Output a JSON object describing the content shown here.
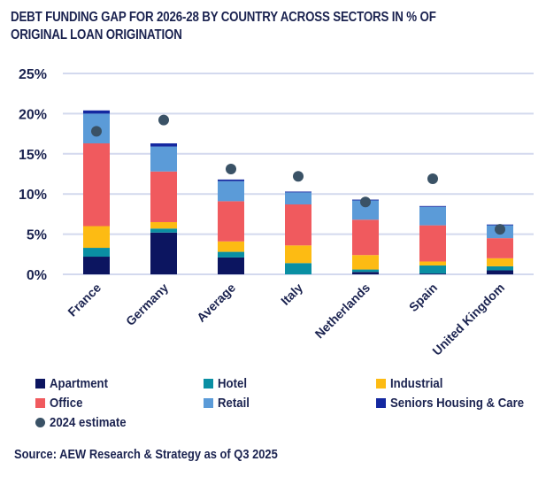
{
  "chart_data": {
    "type": "bar",
    "stacked": true,
    "title": "DEBT FUNDING GAP FOR 2026-28 BY COUNTRY ACROSS SECTORS IN % OF ORIGINAL LOAN ORIGINATION",
    "title_lines": [
      "DEBT FUNDING GAP FOR 2026-28 BY COUNTRY ACROSS SECTORS IN % OF",
      "ORIGINAL LOAN ORIGINATION"
    ],
    "xlabel": "",
    "ylabel": "",
    "ylim": [
      0,
      25
    ],
    "yticks": [
      0,
      5,
      10,
      15,
      20,
      25
    ],
    "ytick_labels": [
      "0%",
      "5%",
      "10%",
      "15%",
      "20%",
      "25%"
    ],
    "grid": true,
    "categories": [
      "France",
      "Germany",
      "Average",
      "Italy",
      "Netherlands",
      "Spain",
      "United Kingdom"
    ],
    "series": [
      {
        "name": "Apartment",
        "color": "#0c1560",
        "values": [
          2.2,
          5.2,
          2.1,
          0.0,
          0.3,
          0.1,
          0.5
        ]
      },
      {
        "name": "Hotel",
        "color": "#0a8fa3",
        "values": [
          1.1,
          0.5,
          0.7,
          1.4,
          0.3,
          1.0,
          0.5
        ]
      },
      {
        "name": "Industrial",
        "color": "#fdbb13",
        "values": [
          2.7,
          0.8,
          1.3,
          2.2,
          1.8,
          0.5,
          1.0
        ]
      },
      {
        "name": "Office",
        "color": "#f05a5e",
        "values": [
          10.3,
          6.3,
          5.0,
          5.1,
          4.4,
          4.5,
          2.5
        ]
      },
      {
        "name": "Retail",
        "color": "#5b9bd8",
        "values": [
          3.7,
          3.1,
          2.5,
          1.5,
          2.4,
          2.3,
          1.6
        ]
      },
      {
        "name": "Seniors Housing & Care",
        "color": "#1428a0",
        "values": [
          0.4,
          0.4,
          0.2,
          0.1,
          0.1,
          0.1,
          0.1
        ]
      }
    ],
    "markers": {
      "name": "2024 estimate",
      "color": "#3a5266",
      "type": "dot",
      "values": [
        17.8,
        19.2,
        13.1,
        12.2,
        9.0,
        11.9,
        5.6
      ]
    },
    "legend_position": "bottom",
    "source": "Source: AEW Research & Strategy as of Q3 2025"
  },
  "colors": {
    "text": "#1b2350",
    "grid": "#d3d9ee"
  }
}
